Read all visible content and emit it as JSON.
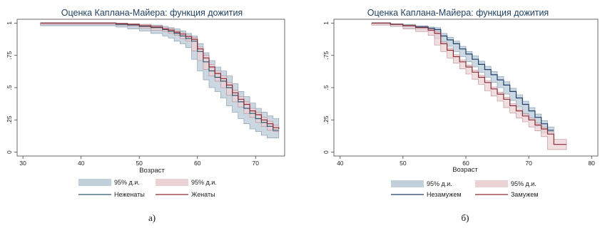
{
  "chart_data": [
    {
      "type": "line",
      "title": "Оценка Каплана-Майера: функция дожития",
      "xlabel": "Возраст",
      "ylabel": "",
      "xlim": [
        29,
        75
      ],
      "ylim": [
        -0.03,
        1.03
      ],
      "x_ticks": [
        "30",
        "40",
        "50",
        "60",
        "70"
      ],
      "x_tick_values": [
        30,
        40,
        50,
        60,
        70
      ],
      "y_ticks": [
        "0",
        ".25",
        ".5",
        ".75",
        "1"
      ],
      "y_tick_values": [
        0,
        0.25,
        0.5,
        0.75,
        1
      ],
      "grid": false,
      "legend_position": "bottom",
      "legend": [
        {
          "label": "95% д.и.",
          "kind": "band",
          "series": 0
        },
        {
          "label": "95% д.и.",
          "kind": "band",
          "series": 1
        },
        {
          "label": "Неженаты",
          "kind": "line",
          "series": 0
        },
        {
          "label": "Женаты",
          "kind": "line",
          "series": 1
        }
      ],
      "caption": "а)",
      "series": [
        {
          "name": "Неженаты",
          "line_color": "#2f5a6e",
          "band_color": "#c2d0dc",
          "band_edge": "#7d94a8",
          "x": [
            33,
            46,
            48,
            50,
            52,
            54,
            55,
            56,
            57,
            58,
            59,
            60,
            61,
            62,
            63,
            64,
            65,
            66,
            67,
            68,
            69,
            70,
            71,
            72,
            73,
            74
          ],
          "y": [
            1.0,
            0.99,
            0.985,
            0.975,
            0.965,
            0.95,
            0.935,
            0.92,
            0.9,
            0.88,
            0.86,
            0.78,
            0.7,
            0.63,
            0.58,
            0.55,
            0.5,
            0.44,
            0.39,
            0.34,
            0.3,
            0.26,
            0.23,
            0.2,
            0.17,
            0.17
          ],
          "lower": [
            1.0,
            0.98,
            0.97,
            0.955,
            0.94,
            0.92,
            0.9,
            0.885,
            0.86,
            0.84,
            0.81,
            0.72,
            0.63,
            0.56,
            0.5,
            0.47,
            0.42,
            0.36,
            0.31,
            0.26,
            0.22,
            0.18,
            0.16,
            0.13,
            0.11,
            0.11
          ],
          "upper": [
            1.0,
            1.0,
            0.995,
            0.99,
            0.985,
            0.975,
            0.965,
            0.955,
            0.94,
            0.92,
            0.9,
            0.84,
            0.77,
            0.71,
            0.66,
            0.63,
            0.59,
            0.53,
            0.47,
            0.43,
            0.38,
            0.34,
            0.31,
            0.28,
            0.26,
            0.26
          ]
        },
        {
          "name": "Женаты",
          "line_color": "#8c2a35",
          "band_color": "#ebd3d5",
          "band_edge": "#b78890",
          "x": [
            33,
            46,
            48,
            50,
            52,
            54,
            55,
            56,
            57,
            58,
            59,
            60,
            61,
            62,
            63,
            64,
            65,
            66,
            67,
            68,
            69,
            70,
            71,
            72,
            73,
            74
          ],
          "y": [
            1.0,
            0.995,
            0.99,
            0.98,
            0.97,
            0.955,
            0.945,
            0.93,
            0.915,
            0.895,
            0.875,
            0.8,
            0.73,
            0.66,
            0.61,
            0.57,
            0.52,
            0.46,
            0.41,
            0.37,
            0.32,
            0.29,
            0.25,
            0.22,
            0.19,
            0.18
          ],
          "lower": [
            1.0,
            0.99,
            0.985,
            0.975,
            0.96,
            0.945,
            0.935,
            0.92,
            0.905,
            0.88,
            0.86,
            0.785,
            0.71,
            0.64,
            0.59,
            0.55,
            0.5,
            0.44,
            0.39,
            0.35,
            0.3,
            0.27,
            0.23,
            0.2,
            0.17,
            0.16
          ],
          "upper": [
            1.0,
            1.0,
            0.995,
            0.99,
            0.98,
            0.965,
            0.955,
            0.94,
            0.925,
            0.905,
            0.89,
            0.815,
            0.75,
            0.68,
            0.63,
            0.59,
            0.54,
            0.48,
            0.43,
            0.39,
            0.34,
            0.31,
            0.27,
            0.24,
            0.21,
            0.2
          ]
        }
      ]
    },
    {
      "type": "line",
      "title": "Оценка Каплана-Майера: функция дожития",
      "xlabel": "Возраст",
      "ylabel": "",
      "xlim": [
        39,
        81
      ],
      "ylim": [
        -0.03,
        1.03
      ],
      "x_ticks": [
        "40",
        "50",
        "60",
        "70",
        "80"
      ],
      "x_tick_values": [
        40,
        50,
        60,
        70,
        80
      ],
      "y_ticks": [
        "0",
        ".25",
        ".5",
        ".75",
        "1"
      ],
      "y_tick_values": [
        0,
        0.25,
        0.5,
        0.75,
        1
      ],
      "grid": false,
      "legend_position": "bottom",
      "legend": [
        {
          "label": "95% д.и.",
          "kind": "band",
          "series": 0
        },
        {
          "label": "95% д.и.",
          "kind": "band",
          "series": 1
        },
        {
          "label": "Незамужем",
          "kind": "line",
          "series": 0
        },
        {
          "label": "Замужем",
          "kind": "line",
          "series": 1
        }
      ],
      "caption": "б)",
      "series": [
        {
          "name": "Незамужем",
          "line_color": "#1f3f6b",
          "band_color": "#c2d0dc",
          "band_edge": "#7d94a8",
          "x": [
            45,
            48,
            50,
            52,
            54,
            55,
            56,
            57,
            58,
            59,
            60,
            61,
            62,
            63,
            64,
            65,
            66,
            67,
            68,
            69,
            70,
            71,
            72,
            73,
            74
          ],
          "y": [
            1.0,
            0.99,
            0.98,
            0.97,
            0.96,
            0.95,
            0.9,
            0.87,
            0.84,
            0.8,
            0.76,
            0.72,
            0.68,
            0.64,
            0.6,
            0.56,
            0.52,
            0.47,
            0.42,
            0.37,
            0.32,
            0.27,
            0.22,
            0.17,
            0.17
          ],
          "lower": [
            1.0,
            0.985,
            0.975,
            0.96,
            0.95,
            0.935,
            0.88,
            0.85,
            0.82,
            0.78,
            0.74,
            0.7,
            0.66,
            0.62,
            0.58,
            0.54,
            0.5,
            0.45,
            0.4,
            0.35,
            0.3,
            0.25,
            0.2,
            0.15,
            0.15
          ],
          "upper": [
            1.0,
            0.995,
            0.99,
            0.98,
            0.97,
            0.965,
            0.92,
            0.89,
            0.86,
            0.82,
            0.78,
            0.745,
            0.705,
            0.665,
            0.625,
            0.585,
            0.545,
            0.495,
            0.445,
            0.395,
            0.345,
            0.295,
            0.245,
            0.195,
            0.195
          ]
        },
        {
          "name": "Замужем",
          "line_color": "#8c2a35",
          "band_color": "#ebd3d5",
          "band_edge": "#b78890",
          "x": [
            45,
            48,
            50,
            52,
            54,
            55,
            56,
            57,
            58,
            59,
            60,
            61,
            62,
            63,
            64,
            65,
            66,
            67,
            68,
            69,
            70,
            71,
            72,
            73,
            74,
            76
          ],
          "y": [
            1.0,
            0.99,
            0.98,
            0.965,
            0.945,
            0.92,
            0.84,
            0.79,
            0.74,
            0.7,
            0.66,
            0.62,
            0.58,
            0.54,
            0.49,
            0.45,
            0.41,
            0.36,
            0.32,
            0.28,
            0.25,
            0.21,
            0.18,
            0.14,
            0.06,
            0.06
          ],
          "lower": [
            1.0,
            0.985,
            0.975,
            0.955,
            0.935,
            0.905,
            0.83,
            0.78,
            0.73,
            0.69,
            0.645,
            0.605,
            0.565,
            0.525,
            0.475,
            0.435,
            0.395,
            0.345,
            0.305,
            0.265,
            0.235,
            0.195,
            0.165,
            0.12,
            0.02,
            0.02
          ],
          "upper": [
            1.0,
            0.995,
            0.985,
            0.975,
            0.955,
            0.935,
            0.855,
            0.805,
            0.755,
            0.715,
            0.675,
            0.635,
            0.595,
            0.555,
            0.505,
            0.465,
            0.425,
            0.375,
            0.335,
            0.295,
            0.265,
            0.225,
            0.195,
            0.16,
            0.1,
            0.1
          ]
        }
      ]
    }
  ]
}
